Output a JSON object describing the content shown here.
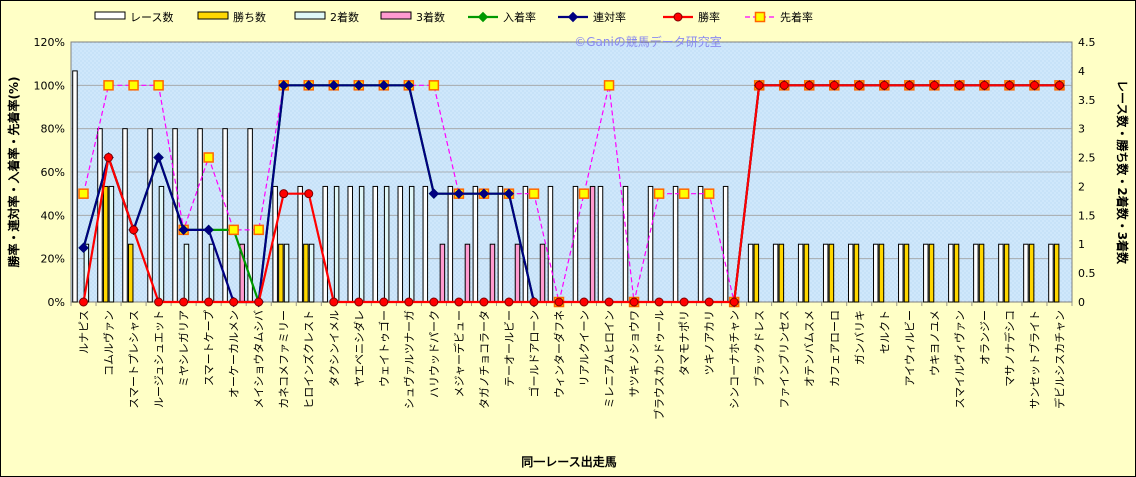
{
  "watermark": "©Ganiの競馬データ研究室",
  "chart_data": {
    "type": "bar+line",
    "xlabel": "同一レース出走馬",
    "ylabel_left": "勝率・連対率・入着率・先着率(%)",
    "ylabel_right": "レース数・勝ち数・2着数・3着数",
    "y_left_range": [
      0,
      120
    ],
    "y_left_ticks": [
      "0%",
      "20%",
      "40%",
      "60%",
      "80%",
      "100%",
      "120%"
    ],
    "y_right_range": [
      0,
      4.5
    ],
    "y_right_ticks": [
      "0",
      "0.5",
      "1",
      "1.5",
      "2",
      "2.5",
      "3",
      "3.5",
      "4",
      "4.5"
    ],
    "grid": true,
    "legend_position": "top",
    "legend": [
      {
        "name": "レース数",
        "kind": "bar",
        "color": "#ffffff"
      },
      {
        "name": "勝ち数",
        "kind": "bar",
        "color": "#ffd700"
      },
      {
        "name": "2着数",
        "kind": "bar",
        "color": "#dff7f7"
      },
      {
        "name": "3着数",
        "kind": "bar",
        "color": "#ff9ad0"
      },
      {
        "name": "入着率",
        "kind": "line",
        "color": "#009900",
        "marker": "diamond",
        "dash": "solid"
      },
      {
        "name": "連対率",
        "kind": "line",
        "color": "#000080",
        "marker": "diamond",
        "dash": "solid"
      },
      {
        "name": "勝率",
        "kind": "line",
        "color": "#ff0000",
        "marker": "circle",
        "dash": "solid"
      },
      {
        "name": "先着率",
        "kind": "line",
        "color": "#ff00ff",
        "marker": "square",
        "dash": "dashed"
      }
    ],
    "categories": [
      "ルナピス",
      "コムルヴァン",
      "スマートプレシャス",
      "ルージュシュエット",
      "ミヤシレガリア",
      "スマートケープ",
      "オーケーカルメン",
      "メイショウタムシバ",
      "カネコメファミリー",
      "ヒロインズクレスト",
      "タクシンイメル",
      "ヤエベニシダレ",
      "ウェイトゥゴー",
      "シュヴァルツナーガ",
      "ハリウッドパーク",
      "メジャーデビュー",
      "タガノチョコラータ",
      "テーオールビー",
      "ゴールドアローン",
      "ウィンターダフネ",
      "リアルクイーン",
      "ミレニアムヒロイン",
      "サツキノショウワ",
      "ブラウスカンドゥール",
      "タマモナポリ",
      "ツキノアカリ",
      "シンコーナホチャン",
      "ブラックドレス",
      "ファインブリンセス",
      "オテンバムスメ",
      "カフェアローロ",
      "ガンバリキ",
      "セルクト",
      "アイウィルビー",
      "ウキヨノユメ",
      "スマイルヴィヴァン",
      "オランジー",
      "マサノナデシコ",
      "サンセットブライト",
      "デビルシスカチャン"
    ],
    "series": [
      {
        "name": "レース数",
        "values": [
          4,
          3,
          3,
          3,
          3,
          3,
          3,
          3,
          2,
          2,
          2,
          2,
          2,
          2,
          2,
          2,
          2,
          2,
          2,
          2,
          2,
          2,
          2,
          2,
          2,
          2,
          2,
          1,
          1,
          1,
          1,
          1,
          1,
          1,
          1,
          1,
          1,
          1,
          1,
          1
        ]
      },
      {
        "name": "勝ち数",
        "values": [
          0,
          2,
          1,
          0,
          0,
          0,
          0,
          0,
          1,
          1,
          0,
          0,
          0,
          0,
          0,
          0,
          0,
          0,
          0,
          0,
          0,
          0,
          0,
          0,
          0,
          0,
          0,
          1,
          1,
          1,
          1,
          1,
          1,
          1,
          1,
          1,
          1,
          1,
          1,
          1
        ]
      },
      {
        "name": "2着数",
        "values": [
          1,
          2,
          0,
          2,
          1,
          1,
          0,
          0,
          1,
          1,
          2,
          2,
          2,
          2,
          0,
          0,
          0,
          0,
          0,
          0,
          0,
          0,
          0,
          0,
          0,
          0,
          0,
          0,
          0,
          0,
          0,
          0,
          0,
          0,
          0,
          0,
          0,
          0,
          0,
          0
        ]
      },
      {
        "name": "3着数",
        "values": [
          0,
          0,
          0,
          0,
          0,
          0,
          1,
          0,
          0,
          0,
          0,
          0,
          0,
          0,
          1,
          1,
          1,
          1,
          1,
          0,
          2,
          0,
          0,
          0,
          0,
          0,
          0,
          0,
          0,
          0,
          0,
          0,
          0,
          0,
          0,
          0,
          0,
          0,
          0,
          0
        ]
      },
      {
        "name": "入着率",
        "values": [
          25,
          66.7,
          33.3,
          66.7,
          33.3,
          33.3,
          33.3,
          0,
          100,
          100,
          100,
          100,
          100,
          100,
          50,
          50,
          50,
          50,
          0,
          null,
          null,
          null,
          null,
          null,
          null,
          null,
          0,
          100,
          100,
          100,
          100,
          100,
          100,
          100,
          100,
          100,
          100,
          100,
          100,
          100
        ]
      },
      {
        "name": "連対率",
        "values": [
          25,
          66.7,
          33.3,
          66.7,
          33.3,
          33.3,
          0,
          0,
          100,
          100,
          100,
          100,
          100,
          100,
          50,
          50,
          50,
          50,
          0,
          null,
          null,
          null,
          null,
          null,
          null,
          null,
          0,
          100,
          100,
          100,
          100,
          100,
          100,
          100,
          100,
          100,
          100,
          100,
          100,
          100
        ]
      },
      {
        "name": "勝率",
        "values": [
          0,
          66.7,
          33.3,
          0,
          0,
          0,
          0,
          0,
          50,
          50,
          0,
          0,
          0,
          0,
          0,
          0,
          0,
          0,
          0,
          0,
          0,
          0,
          0,
          0,
          0,
          0,
          0,
          100,
          100,
          100,
          100,
          100,
          100,
          100,
          100,
          100,
          100,
          100,
          100,
          100
        ]
      },
      {
        "name": "先着率",
        "values": [
          50,
          100,
          100,
          100,
          33.3,
          66.7,
          33.3,
          33.3,
          100,
          100,
          100,
          100,
          100,
          100,
          100,
          50,
          50,
          50,
          50,
          0,
          50,
          100,
          0,
          50,
          50,
          50,
          0,
          100,
          100,
          100,
          100,
          100,
          100,
          100,
          100,
          100,
          100,
          100,
          100,
          100
        ]
      }
    ]
  }
}
